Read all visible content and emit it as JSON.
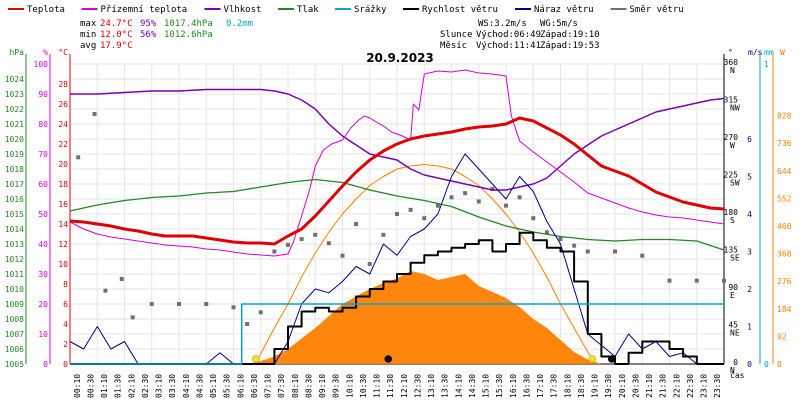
{
  "chart_data": {
    "type": "line",
    "title": "20.9.2023",
    "legend": [
      {
        "name": "Teplota",
        "color": "#e00000"
      },
      {
        "name": "Přízemní teplota",
        "color": "#d800d8"
      },
      {
        "name": "Vlhkost",
        "color": "#7a00b8"
      },
      {
        "name": "Tlak",
        "color": "#228822"
      },
      {
        "name": "Srážky",
        "color": "#00a8c8"
      },
      {
        "name": "Rychlost větru",
        "color": "#000000"
      },
      {
        "name": "Náraz větru",
        "color": "#000088"
      },
      {
        "name": "Směr větru",
        "color": "#707070"
      }
    ],
    "stats": {
      "max_label": "max",
      "min_label": "min",
      "avg_label": "avg",
      "max_temp": "24.7°C",
      "min_temp": "12.0°C",
      "avg_temp": "17.9°C",
      "max_hum": "95%",
      "min_hum": "56%",
      "max_press": "1017.4hPa",
      "min_press": "1012.6hPa",
      "rain": "0.2mm"
    },
    "info": {
      "ws": "WS:3.2m/s",
      "wg": "WG:5m/s",
      "sun_label": "Slunce",
      "sunrise": "Východ:06:49",
      "sunset": "Západ:19:10",
      "moon_label": "Měsíc",
      "moonrise": "Východ:11:41",
      "moonset": "Západ:19:53"
    },
    "axes": {
      "hpa": {
        "label": "hPa",
        "color": "#228822",
        "range": [
          1005,
          1025
        ],
        "ticks": [
          "1005",
          "1006",
          "1007",
          "1008",
          "1009",
          "1010",
          "1011",
          "1012",
          "1013",
          "1014",
          "1015",
          "1016",
          "1017",
          "1018",
          "1019",
          "1020",
          "1021",
          "1022",
          "1023",
          "1024"
        ]
      },
      "percent": {
        "label": "%",
        "color": "#d800d8",
        "range": [
          0,
          100
        ],
        "ticks": [
          "0",
          "10",
          "20",
          "30",
          "40",
          "50",
          "60",
          "70",
          "80",
          "90",
          "100"
        ]
      },
      "celsius": {
        "label": "°C",
        "color": "#e00000",
        "range": [
          0,
          30
        ],
        "ticks": [
          "0",
          "2",
          "4",
          "6",
          "8",
          "10",
          "12",
          "14",
          "16",
          "18",
          "20",
          "22",
          "24",
          "26",
          "28"
        ]
      },
      "direction": {
        "label": "°",
        "color": "#000000",
        "range": [
          0,
          360
        ],
        "ticks": [
          {
            "v": "0",
            "d": "N"
          },
          {
            "v": "45",
            "d": "NE"
          },
          {
            "v": "90",
            "d": "E"
          },
          {
            "v": "135",
            "d": "SE"
          },
          {
            "v": "180",
            "d": "S"
          },
          {
            "v": "225",
            "d": "SW"
          },
          {
            "v": "270",
            "d": "W"
          },
          {
            "v": "315",
            "d": "NW"
          },
          {
            "v": "360",
            "d": "N"
          }
        ]
      },
      "ms": {
        "label": "m/s",
        "color": "#000088",
        "range": [
          0,
          8
        ],
        "ticks": [
          "0",
          "1",
          "2",
          "3",
          "4",
          "5",
          "6"
        ]
      },
      "mm": {
        "label": "mm",
        "color": "#00a8c8",
        "range": [
          0,
          1
        ],
        "ticks": [
          "0",
          "1"
        ]
      },
      "wm2": {
        "label": "W",
        "color": "#ff8000",
        "range": [
          0,
          1000
        ],
        "ticks": [
          "0",
          "92",
          "184",
          "276",
          "368",
          "460",
          "552",
          "644",
          "736",
          "828"
        ]
      },
      "time": {
        "label": "čas",
        "color": "#000000",
        "ticks": [
          "00:10",
          "00:30",
          "01:10",
          "01:30",
          "02:10",
          "02:30",
          "03:10",
          "03:30",
          "04:10",
          "04:30",
          "05:10",
          "05:30",
          "06:10",
          "06:30",
          "07:10",
          "07:30",
          "08:10",
          "08:30",
          "09:10",
          "09:30",
          "10:10",
          "10:30",
          "11:10",
          "11:30",
          "12:10",
          "12:30",
          "13:10",
          "13:30",
          "14:10",
          "14:30",
          "15:10",
          "15:30",
          "16:10",
          "16:30",
          "17:10",
          "17:30",
          "18:10",
          "18:30",
          "19:10",
          "19:30",
          "20:10",
          "20:30",
          "21:10",
          "21:30",
          "22:10",
          "22:30",
          "23:10",
          "23:30"
        ]
      }
    },
    "series": {
      "temperature": {
        "x": [
          0,
          0.5,
          1,
          1.5,
          2,
          2.5,
          3,
          3.5,
          4,
          4.5,
          5,
          5.5,
          6,
          6.5,
          7,
          7.5,
          8,
          8.5,
          9,
          9.5,
          10,
          10.5,
          11,
          11.5,
          12,
          12.5,
          13,
          13.5,
          14,
          14.5,
          15,
          15.5,
          16,
          16.5,
          17,
          17.5,
          18,
          18.5,
          19,
          19.5,
          20,
          20.5,
          21,
          21.5,
          22,
          22.5,
          23,
          23.5,
          24
        ],
        "y": [
          14.3,
          14.2,
          14.0,
          13.8,
          13.5,
          13.3,
          13.0,
          12.8,
          12.8,
          12.8,
          12.6,
          12.4,
          12.2,
          12.1,
          12.1,
          12.0,
          12.8,
          13.5,
          14.8,
          16.3,
          17.8,
          19.2,
          20.4,
          21.3,
          22.0,
          22.5,
          22.8,
          23.0,
          23.2,
          23.5,
          23.7,
          23.8,
          24.0,
          24.6,
          24.3,
          23.6,
          22.9,
          22.0,
          20.9,
          19.8,
          19.3,
          18.8,
          18.0,
          17.2,
          16.7,
          16.2,
          15.9,
          15.6,
          15.5
        ]
      },
      "ground_temperature": {
        "x": [
          0,
          0.5,
          1,
          1.5,
          2,
          2.5,
          3,
          3.5,
          4,
          4.5,
          5,
          5.5,
          6,
          6.5,
          7,
          7.5,
          8,
          8.2,
          8.5,
          8.8,
          9,
          9.3,
          9.6,
          10,
          10.3,
          10.6,
          10.8,
          11,
          11.3,
          11.5,
          11.8,
          12,
          12.2,
          12.5,
          12.6,
          12.8,
          13,
          13.5,
          14,
          14.5,
          15,
          15.5,
          16,
          16.2,
          16.5,
          17,
          17.5,
          18,
          18.5,
          19,
          19.5,
          20,
          20.5,
          21,
          21.5,
          22,
          22.5,
          23,
          23.5,
          24
        ],
        "y": [
          14.2,
          13.5,
          13.0,
          12.7,
          12.5,
          12.3,
          12.1,
          11.9,
          11.8,
          11.7,
          11.5,
          11.4,
          11.2,
          11.0,
          10.9,
          10.8,
          11.0,
          12.2,
          14.8,
          17.5,
          19.8,
          21.4,
          22.0,
          22.4,
          23.6,
          24.4,
          24.8,
          24.6,
          24.1,
          23.8,
          23.2,
          23.0,
          22.8,
          22.4,
          26.0,
          25.4,
          29.0,
          29.3,
          29.2,
          29.4,
          29.1,
          29.0,
          28.8,
          24.8,
          22.3,
          21.2,
          20.2,
          19.2,
          18.2,
          17.1,
          16.6,
          16.1,
          15.6,
          15.2,
          14.9,
          14.7,
          14.6,
          14.4,
          14.2,
          14.0
        ]
      },
      "humidity": {
        "x": [
          0,
          1,
          2,
          3,
          4,
          5,
          6,
          7,
          7.5,
          8,
          8.5,
          9,
          9.5,
          10,
          10.5,
          11,
          11.5,
          12,
          12.5,
          13,
          13.5,
          14,
          14.5,
          15,
          15.5,
          16,
          16.5,
          17,
          17.5,
          18,
          18.5,
          19,
          19.5,
          20,
          20.5,
          21,
          21.5,
          22,
          22.5,
          23,
          23.5,
          24
        ],
        "y": [
          90,
          90,
          90.5,
          91,
          91,
          91.5,
          91.5,
          91.5,
          91,
          90,
          88,
          85,
          80,
          76,
          73,
          70,
          69,
          68,
          65,
          63,
          62,
          61,
          60,
          59,
          58,
          58,
          59,
          60,
          62,
          66,
          70,
          73,
          76,
          78,
          80,
          82,
          84,
          85,
          86,
          87,
          88,
          88.5
        ]
      },
      "pressure": {
        "x": [
          0,
          1,
          2,
          3,
          4,
          5,
          6,
          7,
          8,
          9,
          10,
          11,
          12,
          13,
          14,
          15,
          16,
          17,
          18,
          19,
          20,
          21,
          22,
          23,
          24
        ],
        "y": [
          1015.2,
          1015.6,
          1015.9,
          1016.1,
          1016.2,
          1016.4,
          1016.5,
          1016.8,
          1017.1,
          1017.3,
          1017.1,
          1016.6,
          1016.2,
          1015.9,
          1015.5,
          1014.8,
          1014.2,
          1013.8,
          1013.5,
          1013.3,
          1013.2,
          1013.3,
          1013.3,
          1013.2,
          1012.6
        ]
      },
      "rain_cumulative": {
        "x": [
          0,
          6.2,
          6.3,
          24
        ],
        "y": [
          0,
          0,
          0.2,
          0.2
        ]
      },
      "wind_speed_avg": {
        "x": [
          0,
          7.2,
          7.5,
          8,
          8.5,
          9,
          9.5,
          10,
          10.5,
          11,
          11.5,
          12,
          12.5,
          13,
          13.5,
          14,
          14.5,
          15,
          15.5,
          16,
          16.5,
          17,
          17.5,
          18,
          18.5,
          19,
          19.5,
          20,
          20.5,
          21,
          21.5,
          22,
          22.5,
          23,
          24
        ],
        "y": [
          0,
          0,
          0.4,
          1.0,
          1.4,
          1.5,
          1.4,
          1.5,
          1.8,
          2.0,
          2.2,
          2.4,
          2.7,
          2.9,
          3.0,
          3.1,
          3.2,
          3.3,
          3.0,
          3.2,
          3.5,
          3.3,
          3.1,
          3.0,
          2.2,
          0.8,
          0.2,
          0,
          0.3,
          0.6,
          0.6,
          0.4,
          0.2,
          0,
          0
        ]
      },
      "wind_gust": {
        "x": [
          0,
          0.5,
          1,
          1.5,
          2,
          2.5,
          3,
          3.5,
          4,
          4.5,
          5,
          5.5,
          6,
          6.5,
          7,
          7.5,
          8,
          8.5,
          9,
          9.5,
          10,
          10.5,
          11,
          11.5,
          12,
          12.5,
          13,
          13.5,
          14,
          14.5,
          15,
          15.5,
          16,
          16.5,
          17,
          17.5,
          18,
          18.5,
          19,
          19.5,
          20,
          20.5,
          21,
          21.5,
          22,
          22.5,
          23,
          23.5,
          24
        ],
        "y": [
          0.6,
          0.4,
          1.0,
          0.4,
          0.6,
          0,
          0,
          0,
          0,
          0,
          0,
          0.3,
          0,
          0,
          0,
          0,
          0.6,
          1.6,
          2.0,
          1.9,
          2.2,
          2.6,
          2.4,
          3.2,
          2.9,
          3.4,
          3.6,
          4.0,
          5.0,
          5.6,
          5.2,
          4.8,
          4.4,
          5.0,
          4.6,
          3.8,
          3.2,
          2.0,
          0.8,
          0.5,
          0.2,
          0.8,
          0.4,
          0.6,
          0.2,
          0.3,
          0,
          0,
          0
        ]
      },
      "wind_direction": {
        "x": [
          0.3,
          0.9,
          1.3,
          1.9,
          2.3,
          3,
          4,
          5,
          6,
          6.5,
          7,
          7.5,
          8,
          8.5,
          9,
          9.5,
          10,
          10.5,
          11,
          11.5,
          12,
          12.5,
          13,
          13.5,
          14,
          14.5,
          15,
          15.5,
          16,
          16.5,
          17,
          17.5,
          18,
          18.5,
          19,
          20,
          21,
          22,
          23,
          24
        ],
        "y": [
          248,
          300,
          88,
          102,
          56,
          72,
          72,
          72,
          68,
          48,
          62,
          135,
          143,
          150,
          155,
          145,
          130,
          168,
          120,
          155,
          180,
          185,
          175,
          190,
          200,
          205,
          195,
          210,
          190,
          200,
          175,
          158,
          150,
          142,
          135,
          135,
          130,
          100,
          100,
          100
        ]
      },
      "solar_radiation": {
        "x": [
          6.5,
          7,
          7.5,
          8,
          8.5,
          9,
          9.5,
          10,
          10.5,
          11,
          11.5,
          12,
          12.5,
          13,
          13.5,
          14,
          14.5,
          15,
          15.5,
          16,
          16.5,
          17,
          17.5,
          18,
          18.5,
          19,
          19.5
        ],
        "y": [
          0,
          10,
          25,
          50,
          85,
          120,
          160,
          200,
          225,
          250,
          270,
          285,
          310,
          300,
          280,
          290,
          300,
          260,
          240,
          220,
          190,
          150,
          120,
          80,
          40,
          15,
          0
        ]
      },
      "solar_theoretical": {
        "x": [
          6.8,
          7.5,
          8,
          8.5,
          9,
          9.5,
          10,
          10.5,
          11,
          11.5,
          12,
          12.5,
          13,
          13.5,
          14,
          14.5,
          15,
          15.5,
          16,
          16.5,
          17,
          17.5,
          18,
          18.5,
          19,
          19.3
        ],
        "y": [
          0,
          120,
          200,
          290,
          370,
          440,
          500,
          550,
          595,
          625,
          650,
          660,
          665,
          660,
          650,
          625,
          595,
          550,
          500,
          440,
          370,
          290,
          200,
          120,
          40,
          0
        ]
      }
    }
  }
}
